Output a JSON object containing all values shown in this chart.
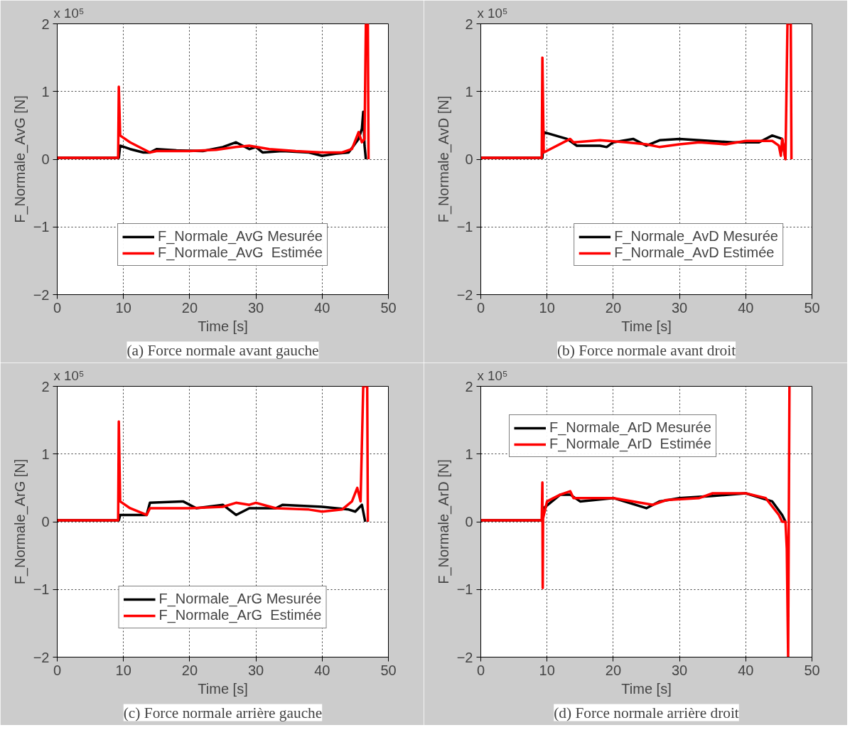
{
  "chart_data": [
    {
      "type": "line",
      "title": "(a) Force normale avant gauche",
      "xlabel": "Time [s]",
      "ylabel": "F_Normale_AvG [N]",
      "annotations": [
        "x 10⁵"
      ],
      "xlim": [
        0,
        50
      ],
      "xticks": [
        0,
        10,
        20,
        30,
        40,
        50
      ],
      "ylim": [
        -2,
        2
      ],
      "yticks": [
        -2,
        -1,
        0,
        1,
        2
      ],
      "grid": true,
      "legend": "bottom",
      "series": [
        {
          "name": "F_Normale_AvG Mesurée",
          "color": "#000000",
          "x": [
            0,
            9.3,
            9.5,
            11,
            13,
            14,
            15,
            18,
            22,
            25,
            27,
            29,
            30,
            31,
            34,
            38,
            40,
            42,
            44,
            45.5,
            46,
            46.2,
            46.4,
            46.6
          ],
          "values": [
            0.02,
            0.02,
            0.2,
            0.15,
            0.1,
            0.1,
            0.15,
            0.13,
            0.12,
            0.18,
            0.25,
            0.15,
            0.18,
            0.1,
            0.12,
            0.1,
            0.05,
            0.08,
            0.1,
            0.3,
            0.45,
            0.7,
            0.2,
            0
          ]
        },
        {
          "name": "F_Normale_AvG  Estimée",
          "color": "#ff0000",
          "x": [
            0,
            9.2,
            9.3,
            9.5,
            11,
            13,
            14,
            15,
            20,
            24,
            27,
            29,
            32,
            36,
            40,
            43,
            44.5,
            45.5,
            46,
            46.4,
            46.6,
            46.9,
            47
          ],
          "values": [
            0.02,
            0.02,
            1.07,
            0.35,
            0.25,
            0.15,
            0.1,
            0.12,
            0.12,
            0.14,
            0.18,
            0.2,
            0.15,
            0.12,
            0.1,
            0.1,
            0.15,
            0.4,
            0.25,
            0.3,
            2.0,
            2.0,
            0
          ]
        }
      ]
    },
    {
      "type": "line",
      "title": "(b) Force normale avant droit",
      "xlabel": "Time [s]",
      "ylabel": "F_Normale_AvD [N]",
      "annotations": [
        "x 10⁵"
      ],
      "xlim": [
        0,
        50
      ],
      "xticks": [
        0,
        10,
        20,
        30,
        40,
        50
      ],
      "ylim": [
        -2,
        2
      ],
      "yticks": [
        -2,
        -1,
        0,
        1,
        2
      ],
      "grid": true,
      "legend": "bottom right",
      "series": [
        {
          "name": "F_Normale_AvD Mesurée",
          "color": "#000000",
          "x": [
            0,
            9.3,
            9.5,
            13,
            14.5,
            18,
            19,
            20,
            23,
            25,
            27,
            30,
            33,
            38,
            42,
            44,
            45.5,
            46
          ],
          "values": [
            0.02,
            0.02,
            0.4,
            0.3,
            0.2,
            0.2,
            0.18,
            0.25,
            0.3,
            0.2,
            0.28,
            0.3,
            0.28,
            0.25,
            0.25,
            0.35,
            0.3,
            0
          ]
        },
        {
          "name": "F_Normale_AvD Estimée",
          "color": "#ff0000",
          "x": [
            0,
            9.2,
            9.3,
            9.5,
            13.5,
            14,
            18,
            22,
            25,
            27,
            30,
            33,
            37,
            40,
            44,
            45,
            45.3,
            45.5,
            46,
            46.3,
            46.8,
            46.9
          ],
          "values": [
            0.02,
            0.02,
            1.5,
            0.1,
            0.3,
            0.25,
            0.28,
            0.25,
            0.22,
            0.18,
            0.22,
            0.25,
            0.22,
            0.27,
            0.27,
            0.2,
            0.05,
            0.3,
            0,
            2.0,
            2.0,
            0
          ]
        }
      ]
    },
    {
      "type": "line",
      "title": "(c) Force normale arrière gauche",
      "xlabel": "Time [s]",
      "ylabel": "F_Normale_ArG [N]",
      "annotations": [
        "x 10⁵"
      ],
      "xlim": [
        0,
        50
      ],
      "xticks": [
        0,
        10,
        20,
        30,
        40,
        50
      ],
      "ylim": [
        -2,
        2
      ],
      "yticks": [
        -2,
        -1,
        0,
        1,
        2
      ],
      "grid": true,
      "legend": "bottom",
      "series": [
        {
          "name": "F_Normale_ArG Mesurée",
          "color": "#000000",
          "x": [
            0,
            9.3,
            9.5,
            13.5,
            14,
            19,
            21,
            25,
            27,
            29,
            33,
            34,
            40,
            44,
            45,
            46,
            46.5
          ],
          "values": [
            0.02,
            0.02,
            0.1,
            0.1,
            0.28,
            0.3,
            0.2,
            0.25,
            0.1,
            0.2,
            0.2,
            0.25,
            0.22,
            0.18,
            0.15,
            0.25,
            0
          ]
        },
        {
          "name": "F_Normale_ArG  Estimée",
          "color": "#ff0000",
          "x": [
            0,
            9.2,
            9.3,
            9.5,
            11,
            13.5,
            14,
            20,
            25,
            27,
            29,
            30,
            33,
            38,
            40,
            43,
            44.5,
            45.3,
            45.8,
            46.2,
            46.8,
            46.9
          ],
          "values": [
            0.02,
            0.02,
            1.48,
            0.3,
            0.2,
            0.1,
            0.2,
            0.2,
            0.22,
            0.28,
            0.25,
            0.28,
            0.2,
            0.18,
            0.15,
            0.18,
            0.3,
            0.5,
            0.3,
            2.0,
            2.0,
            0
          ]
        }
      ]
    },
    {
      "type": "line",
      "title": "(d) Force normale arrière droit",
      "xlabel": "Time [s]",
      "ylabel": "F_Normale_ArD [N]",
      "annotations": [
        "x 10⁵"
      ],
      "xlim": [
        0,
        50
      ],
      "xticks": [
        0,
        10,
        20,
        30,
        40,
        50
      ],
      "ylim": [
        -2,
        2
      ],
      "yticks": [
        -2,
        -1,
        0,
        1,
        2
      ],
      "grid": true,
      "legend": "top left",
      "series": [
        {
          "name": "F_Normale_ArD Mesurée",
          "color": "#000000",
          "x": [
            0,
            9.3,
            9.5,
            12,
            13.5,
            15,
            20,
            25,
            27,
            30,
            35,
            40,
            44,
            45.5,
            46
          ],
          "values": [
            0.02,
            0.02,
            0.2,
            0.4,
            0.4,
            0.3,
            0.35,
            0.2,
            0.3,
            0.35,
            0.38,
            0.42,
            0.3,
            0.1,
            0
          ]
        },
        {
          "name": "F_Normale_ArD  Estimée",
          "color": "#ff0000",
          "x": [
            0,
            9.2,
            9.3,
            9.35,
            9.4,
            10,
            12,
            13.5,
            14,
            20,
            23,
            26,
            28,
            33,
            35,
            40,
            43,
            45,
            45.5,
            46,
            46.2,
            46.4,
            46.6
          ],
          "values": [
            0.02,
            0.02,
            0.58,
            -0.98,
            0.05,
            0.3,
            0.4,
            0.45,
            0.35,
            0.35,
            0.3,
            0.25,
            0.32,
            0.35,
            0.42,
            0.42,
            0.35,
            0.1,
            0,
            0,
            -0.4,
            -2.0,
            2.0
          ]
        }
      ]
    }
  ]
}
